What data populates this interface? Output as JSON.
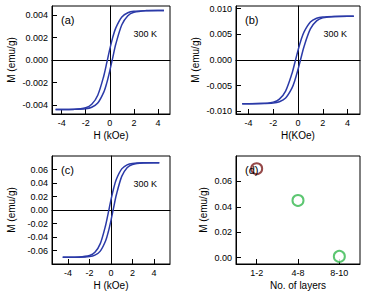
{
  "chart_data": [
    {
      "type": "line",
      "title": "(a)",
      "annotation": "300 K",
      "xlabel": "H (kOe)",
      "ylabel": "M (emu/g)",
      "x": [
        -4.5,
        -4,
        -3,
        -2,
        -1.5,
        -1,
        -0.5,
        -0.25,
        0,
        0.25,
        0.5,
        1,
        1.5,
        2,
        3,
        4,
        4.5
      ],
      "series": [
        {
          "color": "#2b3aa8",
          "values": [
            -0.0044,
            -0.0044,
            -0.00438,
            -0.00424,
            -0.00394,
            -0.00313,
            -0.00142,
            -0.00024,
            0.00096,
            0.00203,
            0.00286,
            0.00383,
            0.0042,
            0.00433,
            0.00439,
            0.0044,
            0.0044
          ]
        },
        {
          "color": "#2b3aa8",
          "values": [
            -0.0044,
            -0.0044,
            -0.00439,
            -0.00433,
            -0.0042,
            -0.00383,
            -0.00286,
            -0.00203,
            -0.00096,
            0.00024,
            0.00142,
            0.00313,
            0.00394,
            0.00424,
            0.00438,
            0.0044,
            0.0044
          ]
        }
      ],
      "xlim": [
        -4.8,
        5
      ],
      "xticks": [
        -4,
        -2,
        0,
        2,
        4
      ],
      "ylim": [
        -0.0048,
        0.0048
      ],
      "yticks": [
        -0.004,
        -0.002,
        {
          "value": 0,
          "label": "0.000"
        },
        0.002,
        0.004
      ],
      "grid": false
    },
    {
      "type": "line",
      "title": "(b)",
      "annotation": "300 K",
      "xlabel": "H(KOe)",
      "ylabel": "M (emu/g)",
      "x": [
        -4.5,
        -4,
        -3,
        -2,
        -1.5,
        -1,
        -0.5,
        -0.25,
        0,
        0.25,
        0.5,
        1,
        1.5,
        2,
        3,
        4,
        4.5
      ],
      "series": [
        {
          "color": "#2b3aa8",
          "values": [
            -0.0085,
            -0.0085,
            -0.00847,
            -0.00819,
            -0.00761,
            -0.00604,
            -0.00274,
            -0.00048,
            0.00186,
            0.00393,
            0.00553,
            0.0074,
            0.00812,
            0.00837,
            0.00848,
            0.0085,
            0.0085
          ]
        },
        {
          "color": "#2b3aa8",
          "values": [
            -0.0085,
            -0.0085,
            -0.00848,
            -0.00837,
            -0.00812,
            -0.0074,
            -0.00553,
            -0.00393,
            -0.00186,
            0.00048,
            0.00274,
            0.00604,
            0.00761,
            0.00819,
            0.00847,
            0.0085,
            0.0085
          ]
        }
      ],
      "xlim": [
        -5,
        5
      ],
      "xticks": [
        -4,
        -2,
        0,
        2,
        4
      ],
      "ylim": [
        -0.0105,
        0.0105
      ],
      "yticks": [
        {
          "value": -0.01,
          "label": "-0.010"
        },
        -0.005,
        {
          "value": 0,
          "label": "0.000"
        },
        0.005,
        {
          "value": 0.01,
          "label": "0.010"
        }
      ],
      "grid": false
    },
    {
      "type": "line",
      "title": "(c)",
      "annotation": "300 K",
      "xlabel": "H (kOe)",
      "ylabel": "M (emu/g)",
      "x": [
        -4.5,
        -4,
        -3,
        -2,
        -1.5,
        -1,
        -0.5,
        -0.25,
        0,
        0.25,
        0.5,
        1,
        1.5,
        2,
        3,
        4,
        4.5
      ],
      "series": [
        {
          "color": "#2b3aa8",
          "values": [
            -0.07,
            -0.07,
            -0.0697,
            -0.0675,
            -0.0627,
            -0.0498,
            -0.0225,
            -0.0039,
            0.0153,
            0.0323,
            0.0456,
            0.0609,
            0.0669,
            0.069,
            0.0699,
            0.07,
            0.07
          ]
        },
        {
          "color": "#2b3aa8",
          "values": [
            -0.07,
            -0.07,
            -0.0699,
            -0.069,
            -0.0669,
            -0.0609,
            -0.0456,
            -0.0323,
            -0.0153,
            0.0039,
            0.0225,
            0.0498,
            0.0627,
            0.0675,
            0.0697,
            0.07,
            0.07
          ]
        }
      ],
      "xlim": [
        -5.5,
        5.5
      ],
      "xticks": [
        -4,
        -2,
        0,
        2,
        4
      ],
      "ylim": [
        -0.08,
        0.08
      ],
      "yticks": [
        -0.06,
        -0.04,
        -0.02,
        {
          "value": 0,
          "label": "0.00"
        },
        0.02,
        0.04,
        0.06
      ],
      "grid": false
    },
    {
      "type": "scatter",
      "title": "(d)",
      "xlabel": "No. of layers",
      "ylabel": "M (emu/g)",
      "categories": [
        "1-2",
        "4-8",
        "8-10"
      ],
      "values": [
        0.07,
        0.045,
        0.001
      ],
      "colors": [
        "#7b1c1c",
        "#33b84e",
        "#33b84e"
      ],
      "marker": "ring",
      "ylim": [
        -0.005,
        0.08
      ],
      "yticks": [
        {
          "value": 0,
          "label": "0.00"
        },
        0.02,
        0.04,
        0.06
      ],
      "grid": false
    }
  ]
}
